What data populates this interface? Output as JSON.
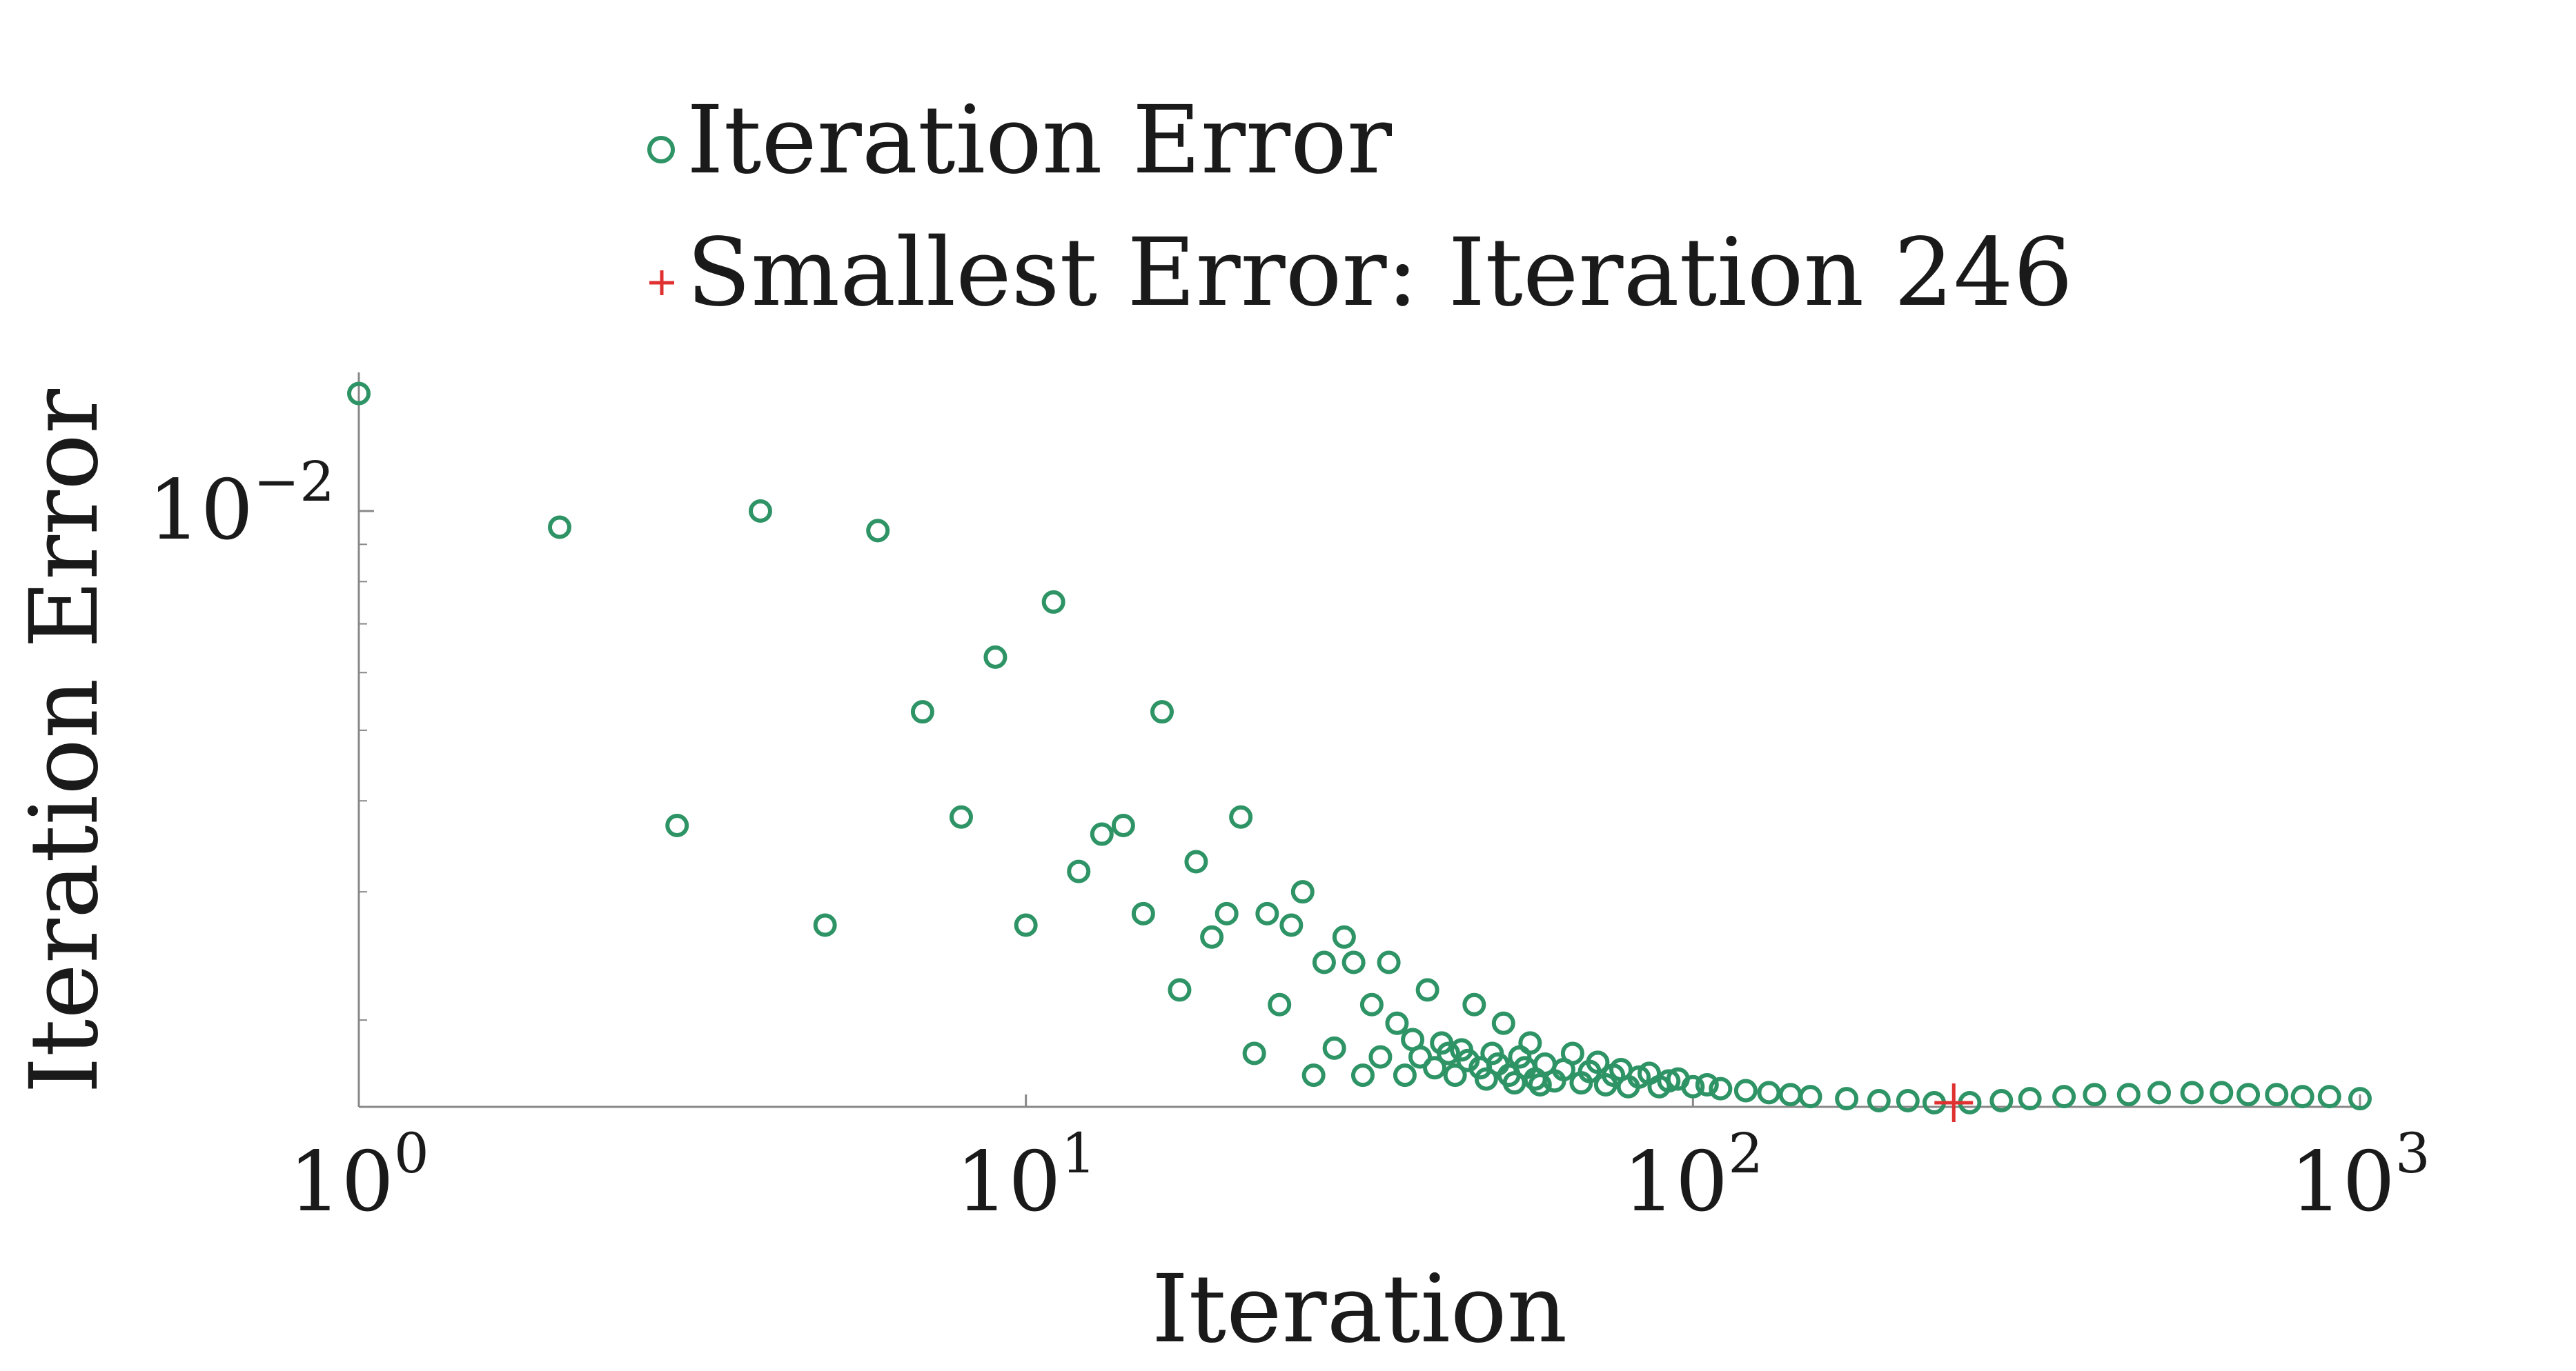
{
  "colors": {
    "series_marker": "#2e9466",
    "min_marker": "#e03131",
    "axis": "#888888",
    "text": "#1a1a1a"
  },
  "legend": {
    "entries": [
      {
        "label": "Iteration Error",
        "marker": "open-circle"
      },
      {
        "label": "Smallest Error: Iteration 246",
        "marker": "plus"
      }
    ]
  },
  "chart_data": {
    "type": "scatter",
    "xlabel": "Iteration",
    "ylabel": "Iteration Error",
    "xscale": "log",
    "yscale": "log",
    "xlim": [
      1,
      1000
    ],
    "ylim": [
      0.00152,
      0.0155
    ],
    "x_ticks": [
      {
        "value": 1,
        "label": "10",
        "exp": "0"
      },
      {
        "value": 10,
        "label": "10",
        "exp": "1"
      },
      {
        "value": 100,
        "label": "10",
        "exp": "2"
      },
      {
        "value": 1000,
        "label": "10",
        "exp": "3"
      }
    ],
    "y_major_ticks": [
      {
        "value": 0.01,
        "label": "10",
        "exp": "−2"
      }
    ],
    "y_minor_ticks": [
      0.002,
      0.003,
      0.004,
      0.005,
      0.006,
      0.007,
      0.008,
      0.009
    ],
    "grid": false,
    "legend_position": "top-left",
    "series": [
      {
        "name": "Iteration Error",
        "marker": "open-circle",
        "points": [
          [
            1,
            0.0145
          ],
          [
            2,
            0.0095
          ],
          [
            3,
            0.0037
          ],
          [
            4,
            0.01
          ],
          [
            5,
            0.0027
          ],
          [
            6,
            0.0094
          ],
          [
            7,
            0.0053
          ],
          [
            8,
            0.0038
          ],
          [
            9,
            0.0063
          ],
          [
            10,
            0.0027
          ],
          [
            11,
            0.0075
          ],
          [
            12,
            0.0032
          ],
          [
            13,
            0.0036
          ],
          [
            14,
            0.0037
          ],
          [
            15,
            0.0028
          ],
          [
            16,
            0.0053
          ],
          [
            17,
            0.0022
          ],
          [
            18,
            0.0033
          ],
          [
            19,
            0.0026
          ],
          [
            20,
            0.0028
          ],
          [
            21,
            0.0038
          ],
          [
            22,
            0.0018
          ],
          [
            23,
            0.0028
          ],
          [
            24,
            0.0021
          ],
          [
            25,
            0.0027
          ],
          [
            26,
            0.003
          ],
          [
            27,
            0.00168
          ],
          [
            28,
            0.0024
          ],
          [
            29,
            0.00183
          ],
          [
            30,
            0.0026
          ],
          [
            31,
            0.0024
          ],
          [
            32,
            0.00168
          ],
          [
            33,
            0.0021
          ],
          [
            34,
            0.00178
          ],
          [
            35,
            0.0024
          ],
          [
            36,
            0.00198
          ],
          [
            37,
            0.00168
          ],
          [
            38,
            0.00188
          ],
          [
            39,
            0.00178
          ],
          [
            40,
            0.0022
          ],
          [
            41,
            0.00172
          ],
          [
            42,
            0.00186
          ],
          [
            43,
            0.0018
          ],
          [
            44,
            0.00168
          ],
          [
            45,
            0.00182
          ],
          [
            46,
            0.00176
          ],
          [
            47,
            0.0021
          ],
          [
            48,
            0.00172
          ],
          [
            49,
            0.00166
          ],
          [
            50,
            0.0018
          ],
          [
            51,
            0.00174
          ],
          [
            52,
            0.00198
          ],
          [
            53,
            0.00168
          ],
          [
            54,
            0.00164
          ],
          [
            55,
            0.00178
          ],
          [
            56,
            0.00172
          ],
          [
            57,
            0.00186
          ],
          [
            58,
            0.00166
          ],
          [
            59,
            0.00163
          ],
          [
            60,
            0.00174
          ],
          [
            62,
            0.00165
          ],
          [
            64,
            0.00171
          ],
          [
            66,
            0.0018
          ],
          [
            68,
            0.00164
          ],
          [
            70,
            0.0017
          ],
          [
            72,
            0.00175
          ],
          [
            74,
            0.00163
          ],
          [
            76,
            0.00168
          ],
          [
            78,
            0.00171
          ],
          [
            80,
            0.00162
          ],
          [
            83,
            0.00167
          ],
          [
            86,
            0.00169
          ],
          [
            89,
            0.00162
          ],
          [
            92,
            0.00165
          ],
          [
            95,
            0.00166
          ],
          [
            100,
            0.00162
          ],
          [
            105,
            0.00163
          ],
          [
            110,
            0.00161
          ],
          [
            120,
            0.0016
          ],
          [
            130,
            0.00159
          ],
          [
            140,
            0.00158
          ],
          [
            150,
            0.00157
          ],
          [
            170,
            0.00156
          ],
          [
            190,
            0.00155
          ],
          [
            210,
            0.00155
          ],
          [
            230,
            0.00154
          ],
          [
            260,
            0.00154
          ],
          [
            290,
            0.00155
          ],
          [
            320,
            0.00156
          ],
          [
            360,
            0.00157
          ],
          [
            400,
            0.00158
          ],
          [
            450,
            0.00158
          ],
          [
            500,
            0.00159
          ],
          [
            560,
            0.00159
          ],
          [
            620,
            0.00159
          ],
          [
            680,
            0.00158
          ],
          [
            750,
            0.00158
          ],
          [
            820,
            0.00157
          ],
          [
            900,
            0.00157
          ],
          [
            1000,
            0.00156
          ]
        ]
      },
      {
        "name": "Smallest Error: Iteration 246",
        "marker": "plus",
        "points": [
          [
            246,
            0.00154
          ]
        ]
      }
    ]
  }
}
